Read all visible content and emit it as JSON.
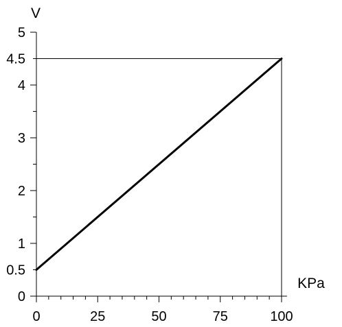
{
  "chart_data": {
    "type": "line",
    "xlabel": "KPa",
    "ylabel": "V",
    "xlim": [
      0,
      100
    ],
    "ylim": [
      0,
      5
    ],
    "x_ticks": [
      0,
      25,
      50,
      75,
      100
    ],
    "x_tick_labels": [
      "0",
      "25",
      "50",
      "75",
      "100"
    ],
    "x_minor_step": 5,
    "y_ticks": [
      0,
      0.5,
      1,
      2,
      3,
      4,
      4.5,
      5
    ],
    "y_tick_labels": [
      "0",
      "0.5",
      "1",
      "2",
      "3",
      "4",
      "4.5",
      "5"
    ],
    "y_minor_step": 0.5,
    "grid": false,
    "legend": "none",
    "reference_lines": [
      {
        "orientation": "horizontal",
        "value": 4.5,
        "from_x": 0,
        "to_x": 100
      },
      {
        "orientation": "vertical",
        "value": 100,
        "from_y": 0,
        "to_y": 4.5
      }
    ],
    "series": [
      {
        "x": [
          0,
          100
        ],
        "y": [
          0.5,
          4.5
        ],
        "color": "#000000"
      }
    ]
  }
}
